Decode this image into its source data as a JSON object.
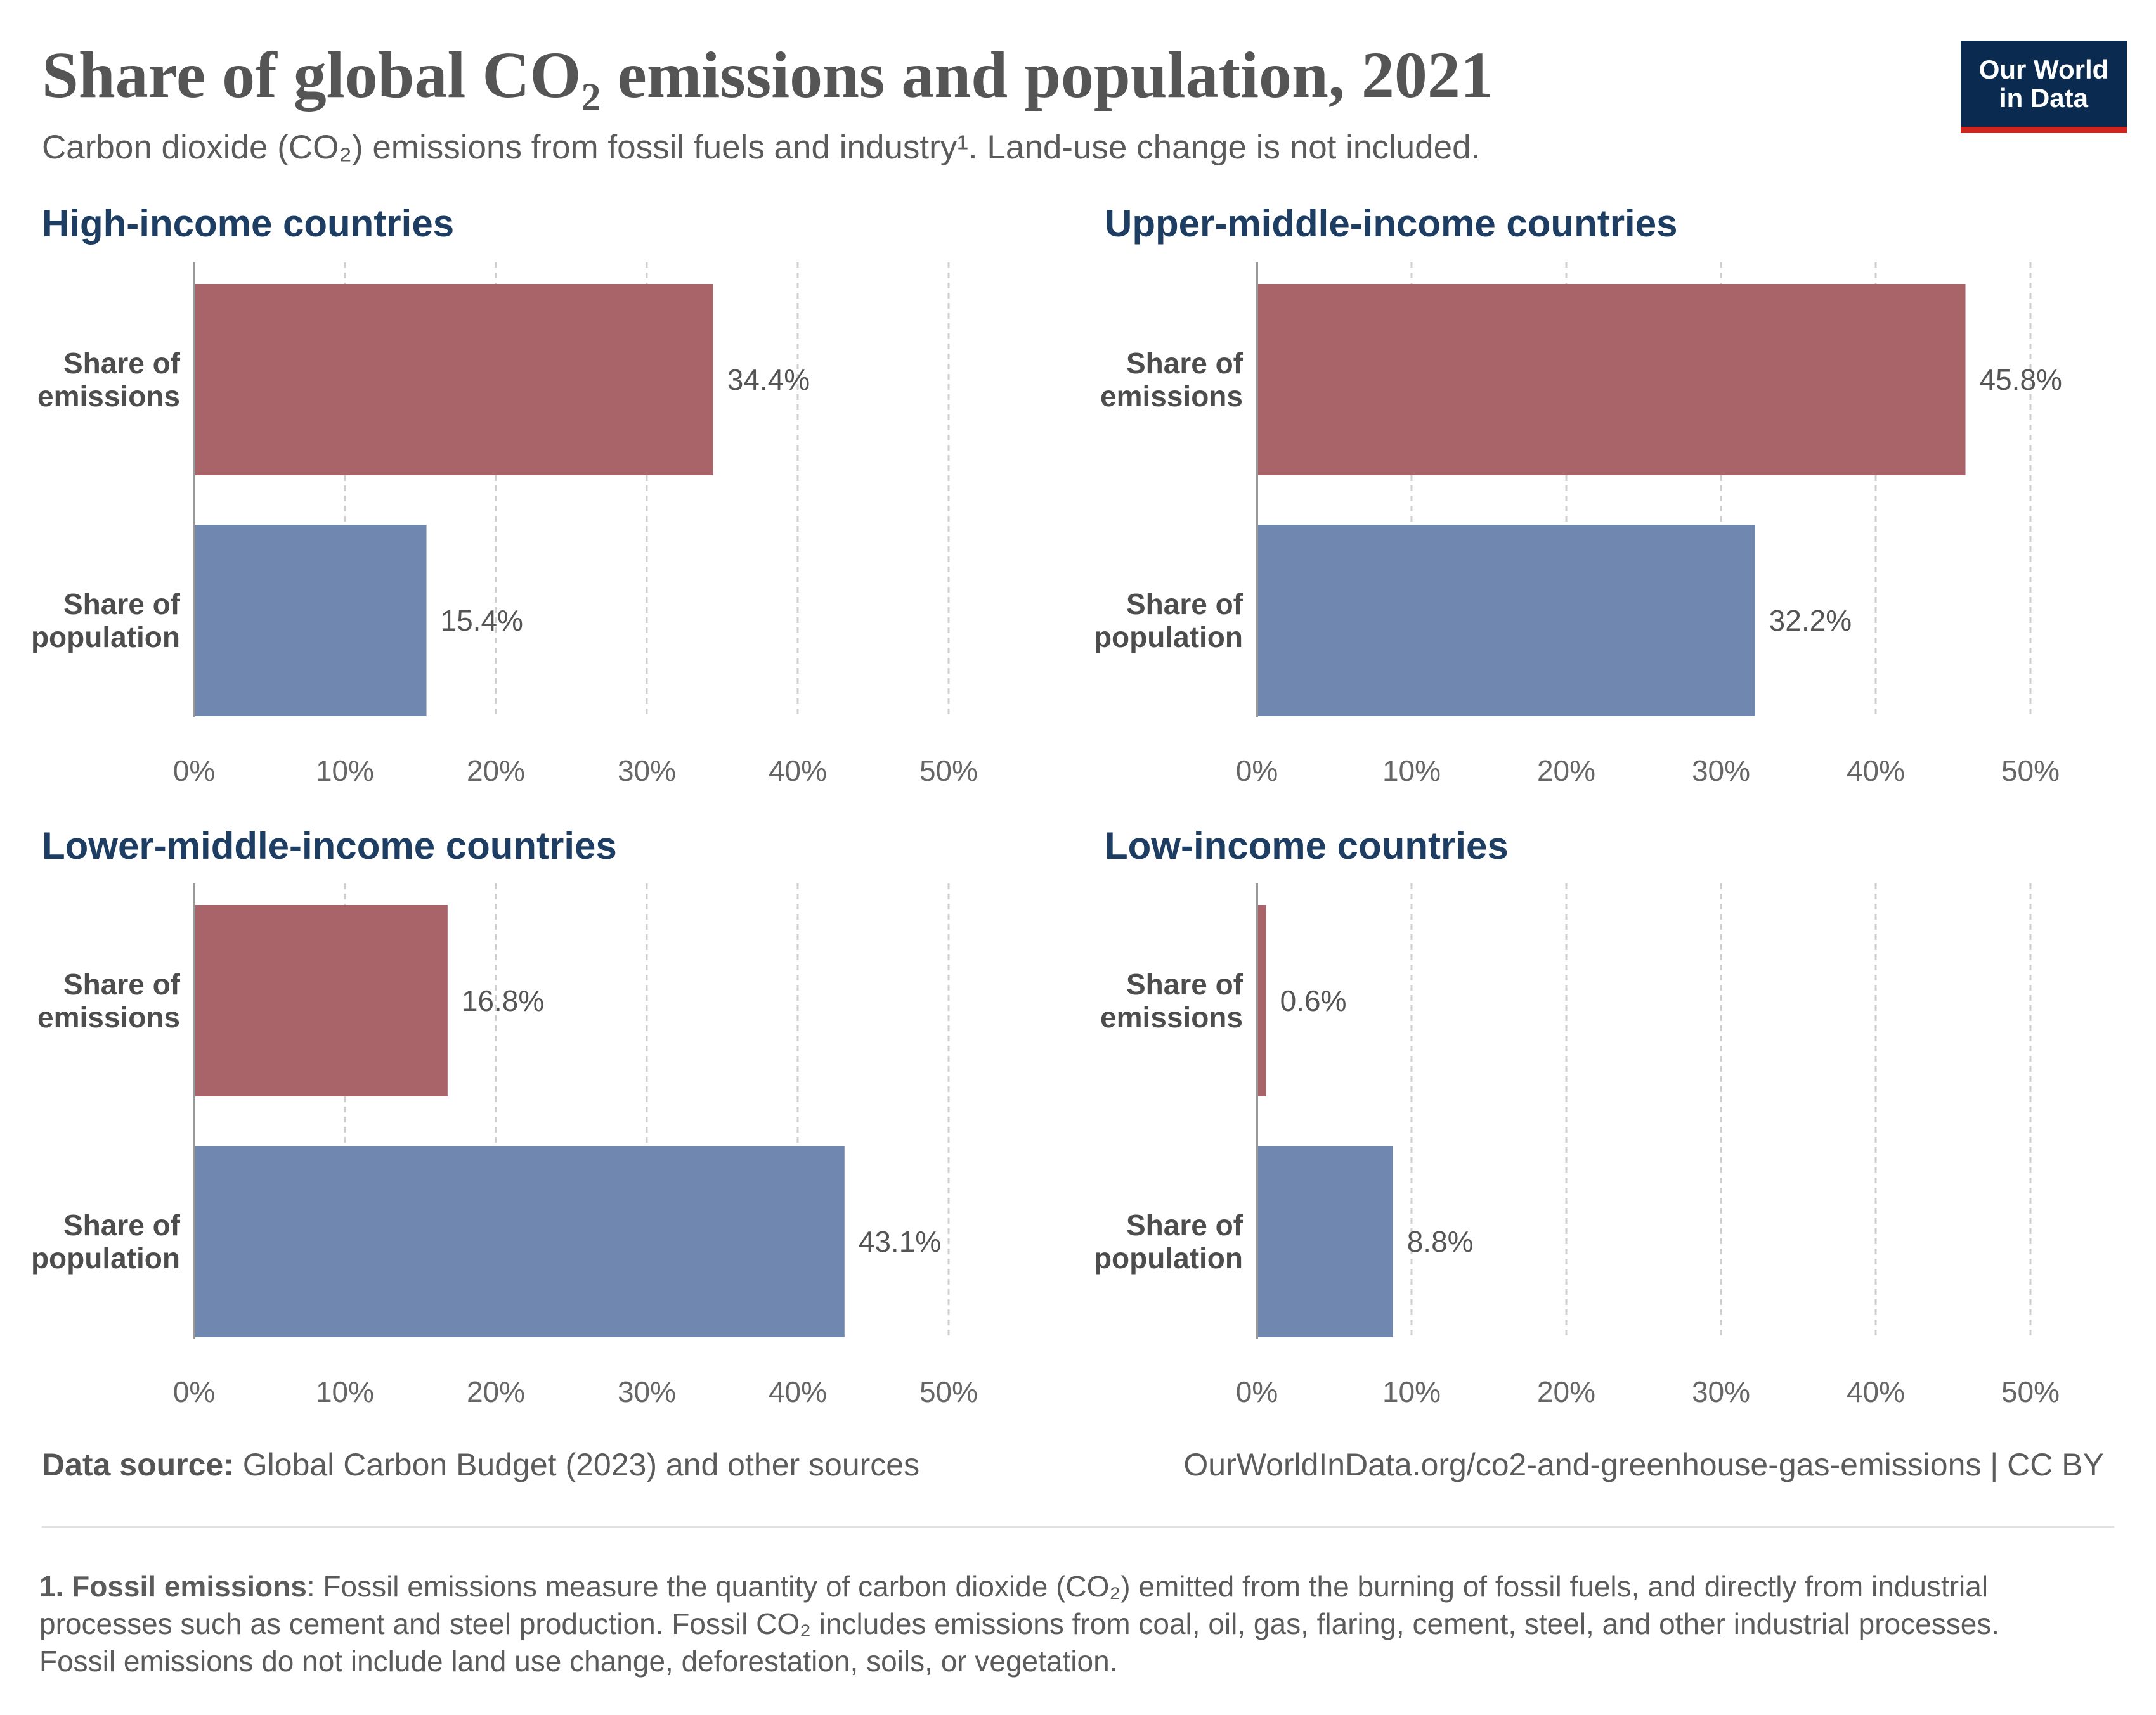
{
  "title_main": "Share of global CO₂ emissions and population, 2021",
  "subtitle_main": "Carbon dioxide (CO₂) emissions from fossil fuels and industry¹. Land-use change is not included.",
  "logo": {
    "line1": "Our World",
    "line2": "in Data"
  },
  "colors": {
    "emissions": "#a9646a",
    "population": "#7087b0",
    "title": "#1d3d63",
    "logo_bg": "#0b2a4f",
    "logo_stripe": "#ce261e"
  },
  "chart_data": {
    "type": "bar",
    "orientation": "horizontal",
    "xlim": [
      0,
      50
    ],
    "x_ticks": [
      "0%",
      "10%",
      "20%",
      "30%",
      "40%",
      "50%"
    ],
    "grid": true,
    "categories": [
      [
        "Share of",
        "emissions"
      ],
      [
        "Share of",
        "population"
      ]
    ],
    "facets": [
      {
        "title": "High-income countries",
        "values": [
          34.4,
          15.4
        ],
        "labels": [
          "34.4%",
          "15.4%"
        ]
      },
      {
        "title": "Upper-middle-income countries",
        "values": [
          45.8,
          32.2
        ],
        "labels": [
          "45.8%",
          "32.2%"
        ]
      },
      {
        "title": "Lower-middle-income countries",
        "values": [
          16.8,
          43.1
        ],
        "labels": [
          "16.8%",
          "43.1%"
        ]
      },
      {
        "title": "Low-income countries",
        "values": [
          0.6,
          8.8
        ],
        "labels": [
          "0.6%",
          "8.8%"
        ]
      }
    ]
  },
  "footer": {
    "source_label": "Data source:",
    "source_text": " Global Carbon Budget (2023) and other sources",
    "url": "OurWorldInData.org/co2-and-greenhouse-gas-emissions | CC BY"
  },
  "note": {
    "label": "1. Fossil emissions",
    "text": ": Fossil emissions measure the quantity of carbon dioxide (CO₂) emitted from the burning of fossil fuels, and directly from industrial processes such as cement and steel production. Fossil CO₂ includes emissions from coal, oil, gas, flaring, cement, steel, and other industrial processes. Fossil emissions do not include land use change, deforestation, soils, or vegetation."
  }
}
